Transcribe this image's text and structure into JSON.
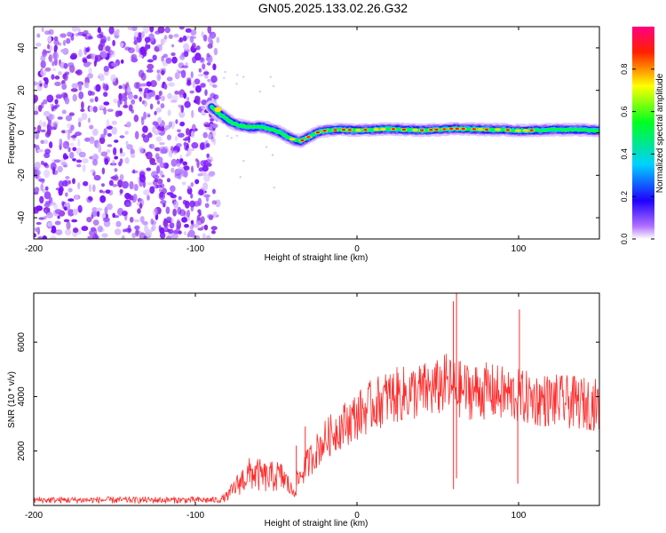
{
  "figure": {
    "title": "GN05.2025.133.02.26.G32"
  },
  "chart_data": [
    {
      "type": "heatmap",
      "title": "GN05.2025.133.02.26.G32",
      "xlabel": "Height of straight line (km)",
      "ylabel": "Frequency (Hz)",
      "xlim": [
        -200,
        150
      ],
      "ylim": [
        -50,
        50
      ],
      "x_ticks": [
        -200,
        -100,
        0,
        100
      ],
      "y_ticks": [
        -40,
        -20,
        0,
        20,
        40
      ],
      "colorbar": {
        "label": "Normalized spectral amplitude",
        "range": [
          0,
          1
        ],
        "ticks": [
          "0.0",
          "0.2",
          "0.4",
          "0.6",
          "0.8"
        ],
        "colors": [
          "#ffffff",
          "#8000ff",
          "#0000ff",
          "#00e0ff",
          "#00ff00",
          "#ffff00",
          "#ff0000",
          "#ff0080"
        ]
      },
      "noise_region": {
        "x_range": [
          -200,
          -88
        ],
        "description_color": "#8a2be2"
      },
      "frequency_track": {
        "x": [
          -90,
          -85,
          -80,
          -75,
          -70,
          -65,
          -60,
          -55,
          -50,
          -45,
          -40,
          -35,
          -30,
          -25,
          -20,
          -10,
          0,
          10,
          20,
          30,
          40,
          50,
          60,
          70,
          80,
          90,
          100,
          110,
          120,
          130,
          140,
          150
        ],
        "y": [
          12,
          9,
          6,
          4,
          3,
          2.5,
          3,
          2,
          1,
          -1,
          -3,
          -4,
          -2,
          0,
          1,
          1.5,
          1.2,
          1.5,
          1.8,
          1.5,
          1.2,
          1.5,
          2,
          1.8,
          1.5,
          1.5,
          1,
          1.2,
          1.5,
          1.5,
          1.4,
          1
        ]
      }
    },
    {
      "type": "line",
      "xlabel": "Height of straight line (km)",
      "ylabel": "SNR (10 * v/v)",
      "xlim": [
        -200,
        150
      ],
      "ylim": [
        0,
        7800
      ],
      "x_ticks": [
        -200,
        -100,
        0,
        100
      ],
      "y_ticks": [
        2000,
        4000,
        6000
      ],
      "color": "#ff2a2a",
      "series": [
        {
          "x": [
            -200,
            -150,
            -100,
            -85,
            -80,
            -75,
            -70,
            -65,
            -60,
            -55,
            -50,
            -45,
            -40,
            -35,
            -30,
            -25,
            -20,
            -10,
            0,
            10,
            20,
            30,
            40,
            50,
            55,
            60,
            65,
            70,
            80,
            90,
            100,
            110,
            120,
            130,
            140,
            150
          ],
          "values": [
            200,
            200,
            200,
            200,
            350,
            700,
            1000,
            1200,
            1100,
            1000,
            1100,
            1000,
            500,
            1100,
            1600,
            2000,
            2400,
            2900,
            3300,
            3700,
            4000,
            4100,
            4200,
            4300,
            4500,
            4300,
            4250,
            4200,
            4200,
            4100,
            4000,
            3900,
            3850,
            3800,
            3750,
            3700
          ]
        }
      ],
      "spikes": [
        {
          "x": 60,
          "values": [
            7500,
            600
          ]
        },
        {
          "x": 62,
          "values": [
            7800,
            1000
          ]
        },
        {
          "x": 100,
          "values": [
            7200,
            800
          ]
        },
        {
          "x": -38,
          "values": [
            2200
          ]
        },
        {
          "x": -32,
          "values": [
            2900
          ]
        }
      ]
    }
  ]
}
